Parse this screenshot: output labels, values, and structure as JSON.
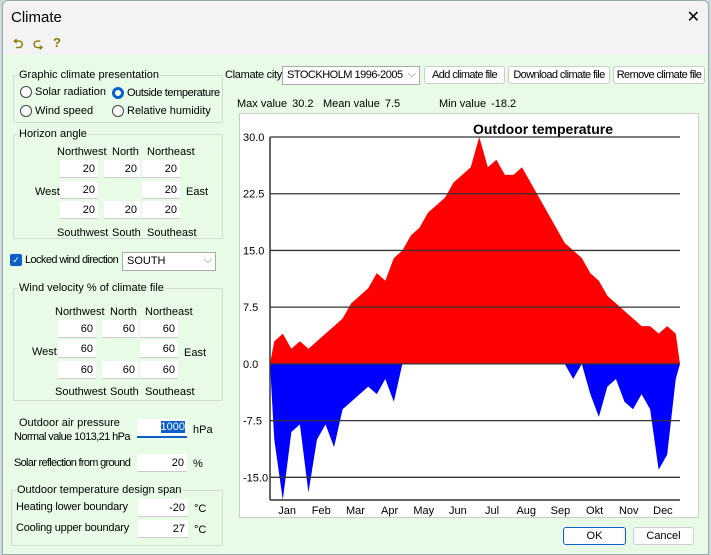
{
  "window": {
    "title": "Climate",
    "close": "✕"
  },
  "toolbar": {
    "icons": [
      "undo-icon",
      "redo-icon",
      "help-icon"
    ],
    "glyphs": [
      "⮌",
      "⮎",
      "?"
    ]
  },
  "presentation": {
    "legend": "Graphic climate presentation",
    "options": [
      {
        "label": "Solar radiation",
        "selected": false
      },
      {
        "label": "Outside temperature",
        "selected": true
      },
      {
        "label": "Wind speed",
        "selected": false
      },
      {
        "label": "Relative humidity",
        "selected": false
      }
    ]
  },
  "horizon": {
    "legend": "Horizon angle",
    "nw": "Northwest",
    "n": "North",
    "ne": "Northeast",
    "w": "West",
    "e": "East",
    "sw": "Southwest",
    "s": "South",
    "se": "Southeast",
    "values": {
      "nw": "20",
      "n": "20",
      "ne": "20",
      "w": "20",
      "e": "20",
      "sw": "20",
      "s": "20",
      "se": "20"
    }
  },
  "locked": {
    "label": "Locked wind direction",
    "checked": true,
    "direction": "SOUTH"
  },
  "wind": {
    "legend": "Wind velocity % of climate file",
    "nw": "Northwest",
    "n": "North",
    "ne": "Northeast",
    "w": "West",
    "e": "East",
    "sw": "Southwest",
    "s": "South",
    "se": "Southeast",
    "values": {
      "nw": "60",
      "n": "60",
      "ne": "60",
      "w": "60",
      "e": "60",
      "sw": "60",
      "s": "60",
      "se": "60"
    }
  },
  "pressure": {
    "label1": "Outdoor air pressure",
    "label2": "Normal value 1013,21 hPa",
    "value": "1000",
    "unit": "hPa"
  },
  "reflection": {
    "label": "Solar reflection from ground",
    "value": "20",
    "unit": "%"
  },
  "design": {
    "legend": "Outdoor temperature design span",
    "heating_label": "Heating lower boundary",
    "heating": "-20",
    "cooling_label": "Cooling upper boundary",
    "cooling": "27",
    "unit": "°C"
  },
  "city": {
    "label": "Clamate city",
    "value": "STOCKHOLM 1996-2005",
    "add": "Add climate file",
    "download": "Download climate file",
    "remove": "Remove climate file"
  },
  "stats": {
    "max_label": "Max value",
    "max": "30.2",
    "mean_label": "Mean value",
    "mean": "7.5",
    "min_label": "Min value",
    "min": "-18.2"
  },
  "buttons": {
    "ok": "OK",
    "cancel": "Cancel"
  },
  "chart_data": {
    "type": "area",
    "title": "Outdoor temperature",
    "ylim": [
      -18,
      30
    ],
    "yticks": [
      "30.0",
      "22.5",
      "15.0",
      "7.5",
      "0.0",
      "-7.5",
      "-15.0"
    ],
    "ytick_values": [
      30,
      22.5,
      15,
      7.5,
      0,
      -7.5,
      -15
    ],
    "months": [
      "Jan",
      "Feb",
      "Mar",
      "Apr",
      "May",
      "Jun",
      "Jul",
      "Aug",
      "Sep",
      "Okt",
      "Nov",
      "Dec"
    ],
    "grid": true,
    "positive_color": "#ff0000",
    "negative_color": "#0000ff",
    "weekly_high": [
      3,
      4,
      2,
      3,
      2,
      3,
      4,
      5,
      6,
      8,
      9,
      10,
      12,
      11,
      14,
      15,
      17,
      18,
      20,
      21,
      22,
      24,
      25,
      26,
      30,
      26,
      27,
      25,
      25,
      26,
      24,
      22,
      20,
      18,
      16,
      15,
      14,
      12,
      11,
      9,
      8,
      7,
      6,
      5,
      5,
      4,
      5,
      4
    ],
    "weekly_low": [
      -10,
      -18,
      -9,
      -8,
      -17,
      -10,
      -8,
      -11,
      -6,
      -5,
      -4,
      -3,
      -4,
      -2,
      -5,
      0,
      2,
      3,
      4,
      5,
      6,
      8,
      9,
      9,
      10,
      11,
      10,
      9,
      10,
      9,
      9,
      8,
      5,
      4,
      3,
      -2,
      1,
      -4,
      -7,
      -3,
      -2,
      -5,
      -6,
      -4,
      -6,
      -14,
      -12,
      -2
    ]
  }
}
